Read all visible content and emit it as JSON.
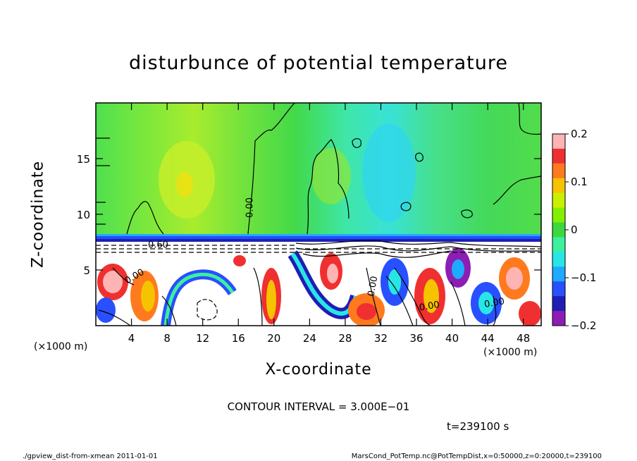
{
  "chart_data": {
    "type": "heatmap",
    "title": "disturbunce of potential temperature",
    "xlabel": "X-coordinate",
    "ylabel": "Z-coordinate",
    "x_unit": "(×1000 m)",
    "z_unit": "(×1000 m)",
    "xlim": [
      0,
      50
    ],
    "ylim": [
      0,
      20
    ],
    "x_ticks": [
      4,
      8,
      12,
      16,
      20,
      24,
      28,
      32,
      36,
      40,
      44,
      48
    ],
    "y_ticks": [
      5,
      10,
      15
    ],
    "colorbar": {
      "range": [
        -0.2,
        0.2
      ],
      "tick_values": [
        0.2,
        0.1,
        0,
        -0.1,
        -0.2
      ],
      "tick_labels": [
        "0.2",
        "0.1",
        "0",
        "−0.1",
        "−0.2"
      ],
      "colors": [
        "#ffb4b4",
        "#f03030",
        "#ff7a1e",
        "#f5c300",
        "#c8f000",
        "#82f000",
        "#3cd93c",
        "#3cf0a0",
        "#28e6e6",
        "#1eaaff",
        "#2850ff",
        "#1e1eb4",
        "#8c1eb4"
      ]
    },
    "contour_labels": [
      {
        "text": "0.00",
        "x": 17.6,
        "z": 10.6,
        "rotate": -90
      },
      {
        "text": "0.60",
        "x": 7.0,
        "z": 7.0,
        "rotate": 0
      },
      {
        "text": "0.00",
        "x": 4.5,
        "z": 4.2,
        "rotate": -30
      },
      {
        "text": "0.00",
        "x": 31.4,
        "z": 3.5,
        "rotate": -80
      },
      {
        "text": "0.00",
        "x": 37.5,
        "z": 1.5,
        "rotate": -10
      },
      {
        "text": "0.00",
        "x": 44.8,
        "z": 1.8,
        "rotate": -10
      }
    ],
    "contour_interval": "CONTOUR INTERVAL = 3.000E−01",
    "time": "t=239100  s"
  },
  "footer": {
    "left": "./gpview_dist-from-xmean   2011-01-01",
    "right": "MarsCond_PotTemp.nc@PotTempDist,x=0:50000,z=0:20000,t=239100"
  }
}
